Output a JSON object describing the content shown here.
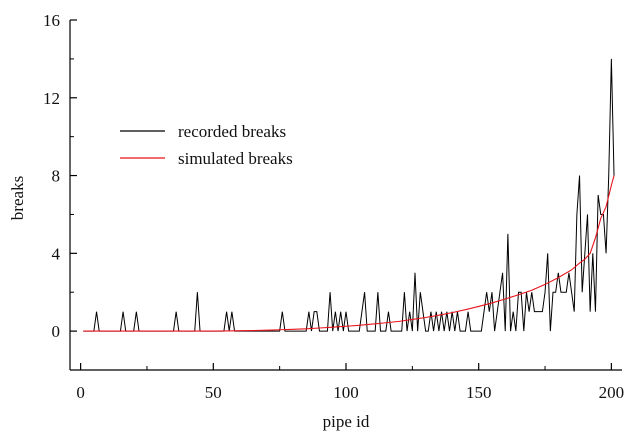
{
  "chart_data": {
    "type": "line",
    "xlabel": "pipe id",
    "ylabel": "breaks",
    "xlim": [
      -4,
      204
    ],
    "ylim": [
      -2,
      16
    ],
    "x_ticks": [
      0,
      50,
      100,
      150,
      200
    ],
    "y_ticks": [
      0,
      4,
      8,
      12,
      16
    ],
    "grid": false,
    "legend_position": "upper-left",
    "series": [
      {
        "name": "recorded breaks",
        "color": "#000000",
        "x": [
          1,
          2,
          3,
          4,
          5,
          6,
          7,
          8,
          9,
          10,
          11,
          12,
          13,
          14,
          15,
          16,
          17,
          18,
          19,
          20,
          21,
          22,
          23,
          24,
          25,
          26,
          27,
          28,
          29,
          30,
          31,
          32,
          33,
          34,
          35,
          36,
          37,
          38,
          39,
          40,
          41,
          42,
          43,
          44,
          45,
          46,
          47,
          48,
          49,
          50,
          51,
          52,
          53,
          54,
          55,
          56,
          57,
          58,
          59,
          60,
          61,
          62,
          63,
          64,
          65,
          66,
          67,
          68,
          69,
          70,
          71,
          72,
          73,
          74,
          75,
          76,
          77,
          78,
          79,
          80,
          81,
          82,
          83,
          84,
          85,
          86,
          87,
          88,
          89,
          90,
          91,
          92,
          93,
          94,
          95,
          96,
          97,
          98,
          99,
          100,
          101,
          102,
          103,
          104,
          105,
          106,
          107,
          108,
          109,
          110,
          111,
          112,
          113,
          114,
          115,
          116,
          117,
          118,
          119,
          120,
          121,
          122,
          123,
          124,
          125,
          126,
          127,
          128,
          129,
          130,
          131,
          132,
          133,
          134,
          135,
          136,
          137,
          138,
          139,
          140,
          141,
          142,
          143,
          144,
          145,
          146,
          147,
          148,
          149,
          150,
          151,
          152,
          153,
          154,
          155,
          156,
          157,
          158,
          159,
          160,
          161,
          162,
          163,
          164,
          165,
          166,
          167,
          168,
          169,
          170,
          171,
          172,
          173,
          174,
          175,
          176,
          177,
          178,
          179,
          180,
          181,
          182,
          183,
          184,
          185,
          186,
          187,
          188,
          189,
          190,
          191,
          192,
          193,
          194,
          195,
          196,
          197,
          198,
          199,
          200,
          201
        ],
        "y": [
          0,
          0,
          0,
          0,
          0,
          1,
          0,
          0,
          0,
          0,
          0,
          0,
          0,
          0,
          0,
          1,
          0,
          0,
          0,
          0,
          1,
          0,
          0,
          0,
          0,
          0,
          0,
          0,
          0,
          0,
          0,
          0,
          0,
          0,
          0,
          1,
          0,
          0,
          0,
          0,
          0,
          0,
          0,
          2,
          0,
          0,
          0,
          0,
          0,
          0,
          0,
          0,
          0,
          0,
          1,
          0,
          1,
          0,
          0,
          0,
          0,
          0,
          0,
          0,
          0,
          0,
          0,
          0,
          0,
          0,
          0,
          0,
          0,
          0,
          0,
          1,
          0,
          0,
          0,
          0,
          0,
          0,
          0,
          0,
          0,
          1,
          0,
          1,
          1,
          0,
          0,
          0,
          0,
          2,
          0,
          1,
          0,
          1,
          0,
          1,
          0,
          0,
          0,
          0,
          0,
          1,
          2,
          0,
          0,
          0,
          0,
          2,
          0,
          0,
          0,
          1,
          0,
          0,
          0,
          0,
          0,
          2,
          0,
          1,
          0,
          3,
          0,
          2,
          1,
          0,
          0,
          1,
          0,
          1,
          0,
          1,
          0,
          1,
          0,
          1,
          0,
          1,
          0,
          0,
          0,
          1,
          0,
          0,
          0,
          0,
          0,
          1,
          2,
          1,
          2,
          0,
          1,
          2,
          3,
          0,
          5,
          0,
          1,
          0,
          2,
          2,
          0,
          2,
          1,
          2,
          1,
          1,
          1,
          1,
          2,
          4,
          0,
          2,
          2,
          3,
          2,
          2,
          2,
          3,
          2,
          1,
          6,
          8,
          2,
          4,
          6,
          1,
          4,
          1,
          7,
          6,
          6,
          4,
          8,
          14,
          8
        ]
      },
      {
        "name": "simulated breaks",
        "color": "#e8141c",
        "x": [
          1,
          10,
          20,
          30,
          40,
          50,
          55,
          60,
          65,
          70,
          75,
          80,
          85,
          90,
          95,
          100,
          105,
          110,
          115,
          120,
          125,
          130,
          135,
          140,
          145,
          150,
          155,
          160,
          165,
          170,
          175,
          180,
          185,
          188,
          190,
          192,
          194,
          196,
          198,
          200,
          201
        ],
        "y": [
          0,
          0,
          0,
          0,
          0,
          0,
          0.01,
          0.02,
          0.03,
          0.05,
          0.07,
          0.09,
          0.12,
          0.16,
          0.2,
          0.25,
          0.3,
          0.36,
          0.43,
          0.5,
          0.6,
          0.7,
          0.82,
          0.95,
          1.1,
          1.27,
          1.45,
          1.65,
          1.87,
          2.1,
          2.4,
          2.75,
          3.15,
          3.5,
          3.7,
          4.0,
          4.8,
          5.8,
          6.4,
          7.5,
          8.0
        ]
      }
    ]
  }
}
